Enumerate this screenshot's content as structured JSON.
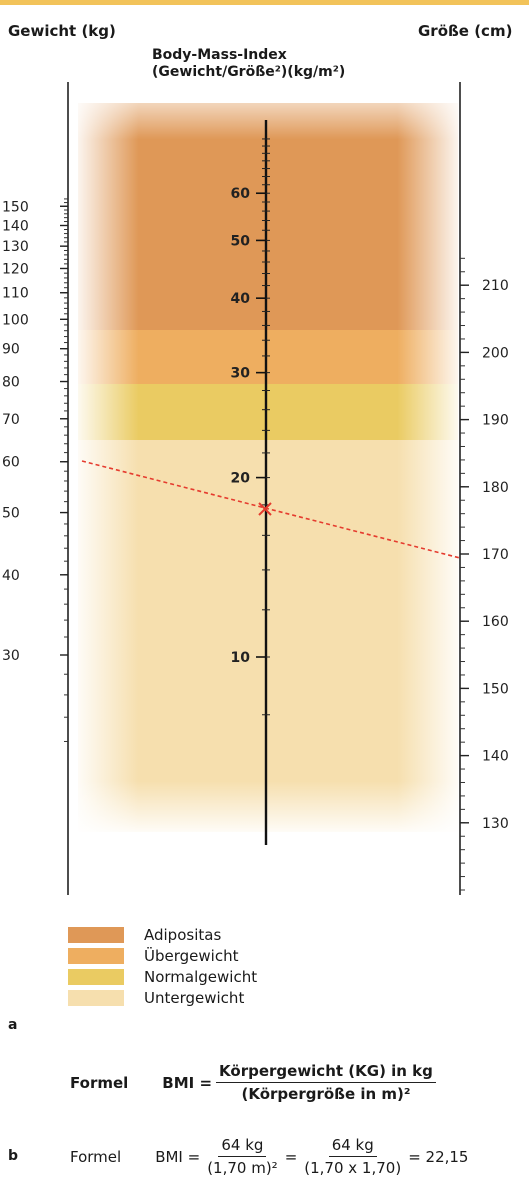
{
  "header": {
    "left_axis_title": "Gewicht (kg)",
    "right_axis_title": "Größe (cm)",
    "center_title_line1": "Body-Mass-Index",
    "center_title_line2": "(Gewicht/Größe²)(kg/m²)"
  },
  "left_axis_ticks": [
    "150",
    "140",
    "130",
    "120",
    "110",
    "100",
    "90",
    "80",
    "70",
    "60",
    "50",
    "40",
    "30"
  ],
  "center_axis_ticks": [
    "60",
    "50",
    "40",
    "30",
    "20",
    "10"
  ],
  "right_axis_ticks": [
    "130",
    "140",
    "150",
    "160",
    "170",
    "180",
    "190",
    "200",
    "210"
  ],
  "zones_legend": [
    {
      "label": "Adipositas",
      "color": "#df9857"
    },
    {
      "label": "Übergewicht",
      "color": "#eeae60"
    },
    {
      "label": "Normalgewicht",
      "color": "#eacb62"
    },
    {
      "label": "Untergewicht",
      "color": "#f6dfae"
    }
  ],
  "example": {
    "weight": "64",
    "height": "170",
    "bmi": "22"
  },
  "panel_labels": {
    "a": "a",
    "b": "b"
  },
  "formula_a": {
    "word": "Formel",
    "lhs": "BMI =",
    "numerator": "Körpergewicht (KG) in kg",
    "denominator": "(Körpergröße in m)²"
  },
  "formula_b": {
    "word": "Formel",
    "lhs": "BMI =",
    "num1": "64 kg",
    "den1": "(1,70 m)²",
    "eq": "=",
    "num2": "64 kg",
    "den2": "(1,70 x 1,70)",
    "result": "= 22,15"
  }
}
